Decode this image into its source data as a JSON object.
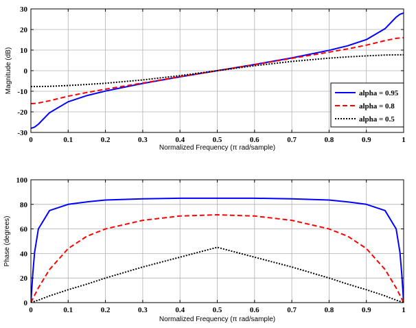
{
  "chart_data": [
    {
      "type": "line",
      "xlabel": "Normalized Frequency  (π rad/sample)",
      "ylabel": "Magnitude (dB)",
      "xlim": [
        0,
        1
      ],
      "ylim": [
        -30,
        30
      ],
      "xticks": [
        0,
        0.1,
        0.2,
        0.3,
        0.4,
        0.5,
        0.6,
        0.7,
        0.8,
        0.9,
        1
      ],
      "yticks": [
        -30,
        -20,
        -10,
        0,
        10,
        20,
        30
      ],
      "grid": true,
      "legend_position": "right",
      "x": [
        0,
        0.01,
        0.02,
        0.05,
        0.1,
        0.15,
        0.2,
        0.3,
        0.4,
        0.5,
        0.6,
        0.7,
        0.8,
        0.85,
        0.9,
        0.95,
        0.98,
        0.99,
        1
      ],
      "series": [
        {
          "name": "alpha = 0.95",
          "color": "#0000ff",
          "dash": "solid",
          "values": [
            -28,
            -27.4,
            -26,
            -20.4,
            -15.1,
            -12.1,
            -9.9,
            -6.2,
            -3.0,
            0,
            3.0,
            6.2,
            9.9,
            12.1,
            15.1,
            20.4,
            26,
            27.4,
            28
          ]
        },
        {
          "name": "alpha = 0.8",
          "color": "#ff0000",
          "dash": "dashed",
          "values": [
            -16,
            -15.9,
            -15.7,
            -14.6,
            -12.4,
            -10.6,
            -9.0,
            -6.0,
            -2.9,
            0,
            2.9,
            6.0,
            9.0,
            10.6,
            12.4,
            14.6,
            15.7,
            15.9,
            16
          ]
        },
        {
          "name": "alpha = 0.5",
          "color": "#000000",
          "dash": "dotted",
          "values": [
            -7.7,
            -7.7,
            -7.7,
            -7.6,
            -7.2,
            -6.7,
            -6.1,
            -4.5,
            -2.4,
            0,
            2.4,
            4.5,
            6.1,
            6.7,
            7.2,
            7.6,
            7.7,
            7.7,
            7.7
          ]
        }
      ]
    },
    {
      "type": "line",
      "xlabel": "Normalized Frequency  (π rad/sample)",
      "ylabel": "Phase (degrees)",
      "xlim": [
        0,
        1
      ],
      "ylim": [
        0,
        100
      ],
      "xticks": [
        0,
        0.1,
        0.2,
        0.3,
        0.4,
        0.5,
        0.6,
        0.7,
        0.8,
        0.9,
        1
      ],
      "yticks": [
        0,
        20,
        40,
        60,
        80,
        100
      ],
      "grid": true,
      "x": [
        0,
        0.005,
        0.01,
        0.02,
        0.05,
        0.1,
        0.15,
        0.2,
        0.3,
        0.4,
        0.5,
        0.6,
        0.7,
        0.8,
        0.85,
        0.9,
        0.95,
        0.98,
        0.99,
        0.995,
        1
      ],
      "series": [
        {
          "name": "alpha = 0.95",
          "color": "#0000ff",
          "dash": "solid",
          "values": [
            0,
            23,
            41,
            60,
            75,
            80,
            82,
            83.5,
            84.5,
            85,
            85,
            85,
            84.5,
            83.5,
            82,
            80,
            75,
            60,
            41,
            23,
            0
          ]
        },
        {
          "name": "alpha = 0.8",
          "color": "#ff0000",
          "dash": "dashed",
          "values": [
            0,
            3,
            6,
            12,
            27,
            44,
            54,
            60,
            67,
            70.5,
            71.5,
            70.5,
            67,
            60,
            54,
            44,
            27,
            12,
            6,
            3,
            0
          ]
        },
        {
          "name": "alpha = 0.5",
          "color": "#000000",
          "dash": "dotted",
          "values": [
            0,
            0.5,
            1,
            2,
            5.5,
            10.5,
            15,
            20,
            29,
            37,
            45,
            37,
            29,
            20,
            15,
            10.5,
            5.5,
            2,
            1,
            0.5,
            0
          ]
        }
      ]
    }
  ]
}
